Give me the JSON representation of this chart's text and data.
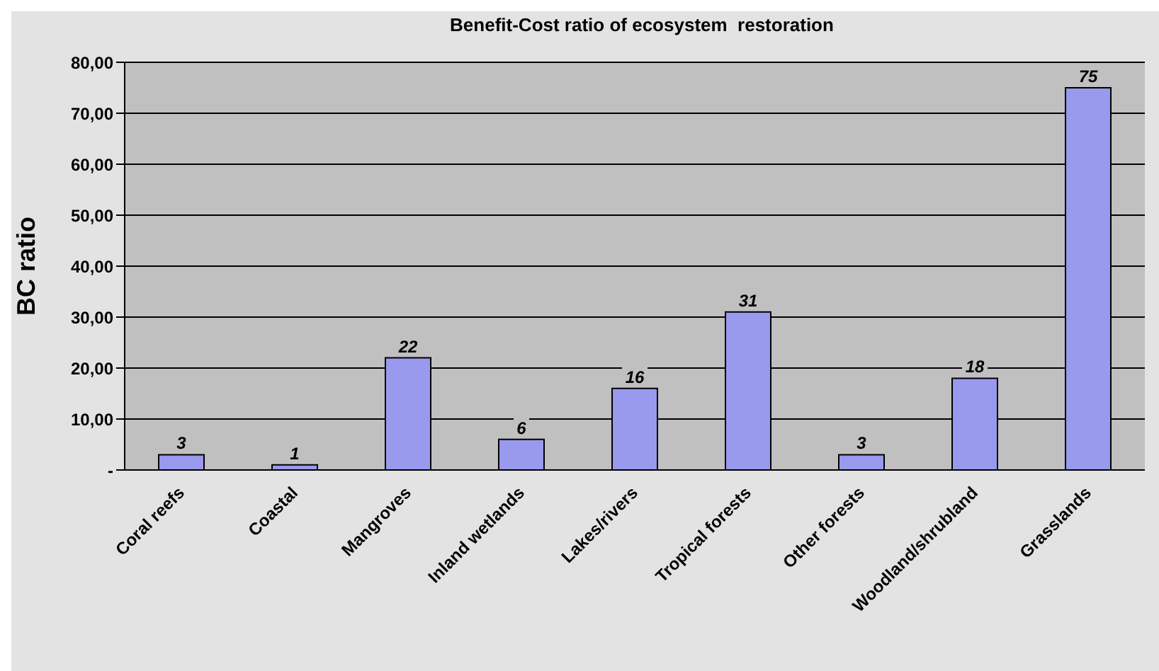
{
  "chart_data": {
    "type": "bar",
    "title": "Benefit-Cost ratio of ecosystem  restoration",
    "ylabel": "BC ratio",
    "categories": [
      "Coral reefs",
      "Coastal",
      "Mangroves",
      "Inland wetlands",
      "Lakes/rivers",
      "Tropical forests",
      "Other forests",
      "Woodland/shrubland",
      "Grasslands"
    ],
    "values": [
      3,
      1,
      22,
      6,
      16,
      31,
      3,
      18,
      75
    ],
    "color": "#9999ee",
    "ylim": [
      0,
      80
    ],
    "yticks": [
      {
        "value": 0,
        "label": "-"
      },
      {
        "value": 10,
        "label": "10,00"
      },
      {
        "value": 20,
        "label": "20,00"
      },
      {
        "value": 30,
        "label": "30,00"
      },
      {
        "value": 40,
        "label": "40,00"
      },
      {
        "value": 50,
        "label": "50,00"
      },
      {
        "value": 60,
        "label": "60,00"
      },
      {
        "value": 70,
        "label": "70,00"
      },
      {
        "value": 80,
        "label": "80,00"
      }
    ],
    "grid": "y",
    "data_labels": true
  }
}
